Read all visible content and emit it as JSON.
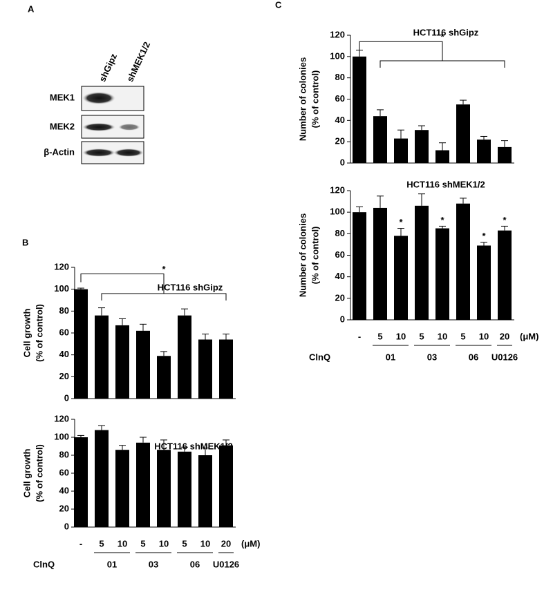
{
  "panel_a": {
    "label": "A",
    "lanes": [
      "shGipz",
      "shMEK1/2"
    ],
    "rows": [
      "MEK1",
      "MEK2",
      "β-Actin"
    ]
  },
  "panel_labels": [
    "B",
    "C"
  ],
  "chart_data": [
    {
      "type": "bar",
      "title": "HCT116 shGipz",
      "ylabel": [
        "Cell  growth",
        "(%  of  control)"
      ],
      "categories": [
        null,
        null,
        null,
        null,
        null,
        null,
        null,
        null
      ],
      "values": [
        100,
        76,
        67,
        62,
        39,
        76,
        54,
        54
      ],
      "errors": [
        1,
        7,
        6,
        6,
        4,
        6,
        5,
        5
      ],
      "color": "#000000",
      "ylim": [
        0,
        120
      ],
      "yticks": [
        0,
        20,
        40,
        60,
        80,
        100,
        120
      ],
      "bracket_label": "*"
    },
    {
      "type": "bar",
      "title": "HCT116 shMEK1/2",
      "ylabel": [
        "Cell  growth",
        "(%  of  control)"
      ],
      "categories": [
        "-",
        "5",
        "10",
        "5",
        "10",
        "5",
        "10",
        "20"
      ],
      "values": [
        100,
        108,
        86,
        94,
        86,
        84,
        80,
        91
      ],
      "errors": [
        2,
        5,
        5,
        6,
        11,
        5,
        8,
        6
      ],
      "color": "#000000",
      "ylim": [
        0,
        120
      ],
      "yticks": [
        0,
        20,
        40,
        60,
        80,
        100,
        120
      ],
      "xlabel": "ClnQ",
      "unit": "(μM)",
      "groups": [
        "01",
        "03",
        "06",
        "U0126"
      ]
    },
    {
      "type": "bar",
      "title": "HCT116 shGipz",
      "ylabel": [
        "Number  of  colonies",
        "(%  of  control)"
      ],
      "categories": [
        null,
        null,
        null,
        null,
        null,
        null,
        null,
        null
      ],
      "values": [
        100,
        44,
        23,
        31,
        12,
        55,
        22,
        15
      ],
      "errors": [
        6,
        6,
        8,
        4,
        7,
        4,
        3,
        6
      ],
      "color": "#000000",
      "ylim": [
        0,
        120
      ],
      "yticks": [
        0,
        20,
        40,
        60,
        80,
        100,
        120
      ],
      "bracket_label": "*"
    },
    {
      "type": "bar",
      "title": "HCT116 shMEK1/2",
      "ylabel": [
        "Number  of  colonies",
        "(%  of  control)"
      ],
      "categories": [
        "-",
        "5",
        "10",
        "5",
        "10",
        "5",
        "10",
        "20"
      ],
      "values": [
        100,
        104,
        78,
        106,
        85,
        108,
        69,
        83
      ],
      "errors": [
        5,
        11,
        7,
        11,
        2,
        5,
        3,
        4
      ],
      "significance": [
        null,
        null,
        "*",
        null,
        "*",
        null,
        "*",
        "*"
      ],
      "color": "#000000",
      "ylim": [
        0,
        120
      ],
      "yticks": [
        0,
        20,
        40,
        60,
        80,
        100,
        120
      ],
      "xlabel": "ClnQ",
      "unit": "(μM)",
      "groups": [
        "01",
        "03",
        "06",
        "U0126"
      ]
    }
  ]
}
